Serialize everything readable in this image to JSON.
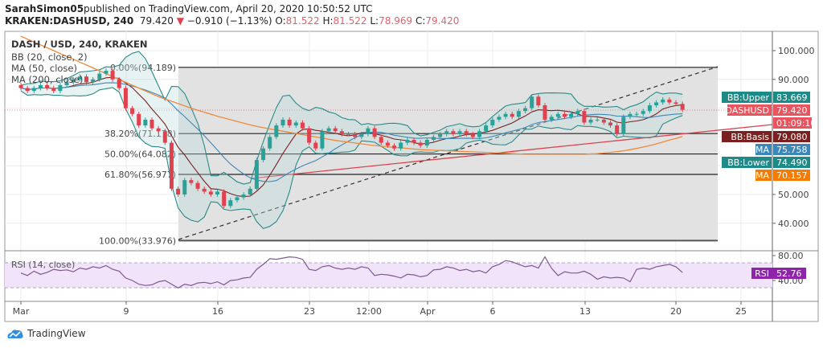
{
  "header": {
    "author": "SarahSimon05",
    "published": "published on TradingView.com, April 20, 2020 10:50:52 UTC",
    "symbol": "KRAKEN:DASHUSD, 240",
    "last": "79.420",
    "change": "−0.910 (−1.13%)",
    "o_label": "O:",
    "o": "81.522",
    "h_label": "H:",
    "h": "81.522",
    "l_label": "L:",
    "l": "78.969",
    "c_label": "C:",
    "c": "79.420",
    "direction_icon": "triangle-down-icon"
  },
  "legend": {
    "title": "DASH / USD, 240, KRAKEN",
    "bb": "BB (20, close, 2)",
    "ma50": "MA (50, close)",
    "ma200": "MA (200, close)"
  },
  "price_axis": [
    "100.000",
    "90.000",
    "50.000",
    "40.000"
  ],
  "axis_badges": [
    {
      "label": "BB:Upper",
      "value": "83.669",
      "color": "#1e8a87"
    },
    {
      "label": "DASHUSD",
      "value": "79.420",
      "color": "#e9555f"
    },
    {
      "label": "",
      "value": "01:09:10",
      "color": "#e9555f"
    },
    {
      "label": "BB:Basis",
      "value": "79.080",
      "color": "#7b1f1f"
    },
    {
      "label": "MA",
      "value": "75.758",
      "color": "#3d86b8"
    },
    {
      "label": "BB:Lower",
      "value": "74.490",
      "color": "#1e8a87"
    },
    {
      "label": "MA",
      "value": "70.157",
      "color": "#f57c00"
    }
  ],
  "fib_labels": [
    "0.00%(94.189)",
    "38.20%(71.178)",
    "50.00%(64.082)",
    "61.80%(56.977)",
    "100.00%(33.976)"
  ],
  "rsi": {
    "label": "RSI (14, close)",
    "axis": [
      "80.00",
      "40.00"
    ],
    "badge_label": "RSI",
    "badge_value": "52.76",
    "color": "#8e24aa"
  },
  "time_axis": [
    "Mar",
    "9",
    "16",
    "23",
    "12:00",
    "Apr",
    "6",
    "13",
    "20",
    "25"
  ],
  "branding": "TradingView",
  "chart_data": {
    "type": "candlestick",
    "interval": "240",
    "x_start": "2020-03-01",
    "x_step": "12h",
    "ylim": [
      30,
      105
    ],
    "grid": true,
    "closes": [
      87,
      86,
      87,
      88,
      87,
      86,
      88,
      89,
      90,
      91,
      89,
      90,
      92,
      93,
      90,
      87,
      80,
      78,
      74,
      76,
      73,
      72,
      68,
      52,
      50,
      55,
      54,
      52,
      51,
      50,
      51,
      46,
      48,
      49,
      50,
      52,
      62,
      66,
      70,
      74,
      76,
      74,
      75,
      73,
      68,
      66,
      72,
      73,
      72,
      71,
      71,
      70,
      71,
      73,
      70,
      68,
      67,
      66,
      68,
      69,
      68,
      67,
      69,
      70,
      71,
      72,
      71,
      72,
      71,
      70,
      72,
      74,
      76,
      77,
      78,
      77,
      79,
      80,
      84,
      81,
      76,
      77,
      78,
      77,
      78,
      79,
      75,
      76,
      76,
      75,
      74,
      71,
      77,
      78,
      78,
      79,
      81,
      82,
      83,
      82,
      81.5,
      79.42
    ],
    "first_open": 88,
    "ma200": [
      105,
      104,
      103,
      102,
      101,
      100,
      99,
      98,
      97,
      96,
      95,
      94,
      93,
      92,
      91,
      90,
      89,
      88,
      87,
      86,
      85,
      84,
      83.2,
      82.4,
      81.6,
      80.8,
      80,
      79.3,
      78.6,
      77.9,
      77.2,
      76.6,
      76,
      75.4,
      74.8,
      74.2,
      73.7,
      73.2,
      72.8,
      72.4,
      72,
      71.6,
      71.2,
      70.8,
      70.4,
      70,
      69.6,
      69.2,
      68.8,
      68.5,
      68.2,
      67.9,
      67.6,
      67.3,
      67,
      66.8,
      66.6,
      66.4,
      66.2,
      66,
      65.8,
      65.6,
      65.5,
      65.4,
      65.3,
      65.2,
      65.1,
      65,
      64.9,
      64.8,
      64.7,
      64.6,
      64.5,
      64.4,
      64.3,
      64.2,
      64.1,
      64,
      64,
      64,
      64,
      64,
      64,
      64,
      64,
      64,
      64,
      64.1,
      64.2,
      64.4,
      64.6,
      64.9,
      65.2,
      65.6,
      66,
      66.5,
      67,
      67.6,
      68.2,
      68.9,
      69.5,
      70.157
    ],
    "rsi": [
      52,
      48,
      55,
      50,
      53,
      58,
      56,
      57,
      54,
      60,
      58,
      62,
      60,
      64,
      58,
      55,
      44,
      40,
      34,
      32,
      33,
      38,
      40,
      34,
      28,
      34,
      32,
      36,
      37,
      35,
      38,
      33,
      40,
      41,
      44,
      45,
      58,
      66,
      75,
      74,
      76,
      78,
      77,
      74,
      58,
      56,
      62,
      64,
      60,
      58,
      60,
      58,
      62,
      60,
      48,
      50,
      49,
      47,
      44,
      50,
      49,
      46,
      48,
      57,
      58,
      62,
      60,
      56,
      58,
      54,
      56,
      52,
      62,
      66,
      72,
      70,
      66,
      62,
      64,
      60,
      78,
      60,
      48,
      54,
      52,
      52,
      55,
      50,
      42,
      46,
      44,
      45,
      44,
      38,
      58,
      60,
      58,
      62,
      64,
      66,
      62,
      52.76
    ],
    "fib_levels": [
      94.189,
      71.178,
      64.082,
      56.977,
      33.976
    ]
  }
}
